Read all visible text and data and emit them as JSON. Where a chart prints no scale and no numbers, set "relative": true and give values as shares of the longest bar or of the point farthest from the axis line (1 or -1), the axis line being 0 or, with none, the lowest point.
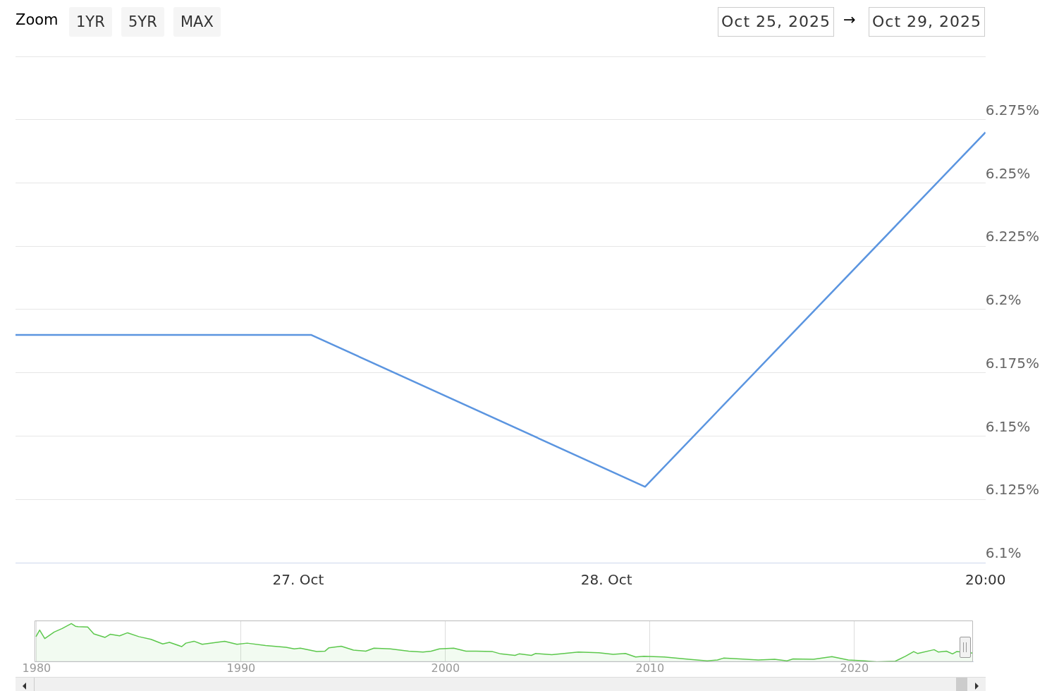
{
  "chart_data": [
    {
      "type": "line",
      "annotations": [
        "Zoom",
        "1YR",
        "5YR",
        "MAX",
        "Oct 25, 2025",
        "→",
        "Oct 29, 2025"
      ],
      "x": [
        "2025-10-26T02:00",
        "2025-10-27T01:00",
        "2025-10-28T03:00",
        "2025-10-29T05:30"
      ],
      "series": [
        {
          "color": "#5b95e0",
          "values": [
            6.19,
            6.19,
            6.13,
            6.27
          ]
        }
      ],
      "xlim": [
        "2025-10-26T02:00",
        "2025-10-29T05:30"
      ],
      "xticks": [
        {
          "value": "2025-10-27",
          "label": "27. Oct"
        },
        {
          "value": "2025-10-28",
          "label": "28. Oct"
        },
        {
          "value": "2025-10-29T05:30",
          "label": "20:00"
        }
      ],
      "ylim": [
        6.1,
        6.3
      ],
      "yticks": [
        {
          "value": 6.1,
          "label": "6.1%"
        },
        {
          "value": 6.125,
          "label": "6.125%"
        },
        {
          "value": 6.15,
          "label": "6.15%"
        },
        {
          "value": 6.175,
          "label": "6.175%"
        },
        {
          "value": 6.2,
          "label": "6.2%"
        },
        {
          "value": 6.225,
          "label": "6.225%"
        },
        {
          "value": 6.25,
          "label": "6.25%"
        },
        {
          "value": 6.275,
          "label": "6.275%"
        },
        {
          "value": 6.3,
          "label": null
        }
      ],
      "grid": "y",
      "legend": false,
      "marker": "none",
      "line_style": "solid"
    },
    {
      "type": "area",
      "relative": true,
      "x": [
        1979.97,
        1980.15,
        1980.4,
        1980.86,
        1981.25,
        1981.7,
        1981.9,
        1982.03,
        1982.5,
        1982.8,
        1983.35,
        1983.6,
        1984.06,
        1984.45,
        1985,
        1985.6,
        1986.17,
        1986.5,
        1987.1,
        1987.3,
        1987.7,
        1988.1,
        1989.2,
        1989.8,
        1990.3,
        1991.2,
        1992.2,
        1992.6,
        1992.9,
        1993.7,
        1994.1,
        1994.3,
        1994.9,
        1995.5,
        1996.1,
        1996.5,
        1997.3,
        1998.2,
        1998.9,
        1999.3,
        1999.7,
        2000.4,
        2001,
        2001.5,
        2002.3,
        2002.7,
        2003.4,
        2003.6,
        2004.2,
        2004.4,
        2005.2,
        2006.5,
        2007.5,
        2008.2,
        2008.8,
        2009.3,
        2009.7,
        2010.7,
        2011.9,
        2012.8,
        2013.3,
        2013.6,
        2014.4,
        2015.3,
        2016.1,
        2016.7,
        2017,
        2018,
        2018.9,
        2019.7,
        2020.5,
        2021.1,
        2022,
        2022.5,
        2022.9,
        2023.1,
        2023.9,
        2024.1,
        2024.5,
        2024.8,
        2025,
        2025.8
      ],
      "series": [
        {
          "color": "#5cc84c",
          "values": [
            0.66,
            0.83,
            0.61,
            0.78,
            0.87,
            1,
            0.93,
            0.92,
            0.91,
            0.73,
            0.64,
            0.72,
            0.68,
            0.76,
            0.66,
            0.59,
            0.47,
            0.51,
            0.4,
            0.49,
            0.54,
            0.46,
            0.54,
            0.46,
            0.49,
            0.43,
            0.38,
            0.34,
            0.36,
            0.27,
            0.28,
            0.37,
            0.41,
            0.31,
            0.28,
            0.36,
            0.34,
            0.28,
            0.26,
            0.28,
            0.34,
            0.36,
            0.28,
            0.28,
            0.27,
            0.21,
            0.17,
            0.21,
            0.17,
            0.22,
            0.19,
            0.26,
            0.24,
            0.2,
            0.22,
            0.13,
            0.15,
            0.13,
            0.07,
            0.03,
            0.05,
            0.1,
            0.08,
            0.05,
            0.07,
            0.03,
            0.08,
            0.07,
            0.14,
            0.05,
            0.03,
            0,
            0.02,
            0.15,
            0.27,
            0.22,
            0.32,
            0.26,
            0.28,
            0.21,
            0.27,
            0.23
          ]
        }
      ],
      "xlim": [
        1979.9,
        2025.8
      ],
      "xticks": [
        1980,
        1990,
        2000,
        2010,
        2020
      ],
      "grid": "x",
      "tick_labels": "x",
      "legend": false,
      "marker": "none"
    }
  ]
}
